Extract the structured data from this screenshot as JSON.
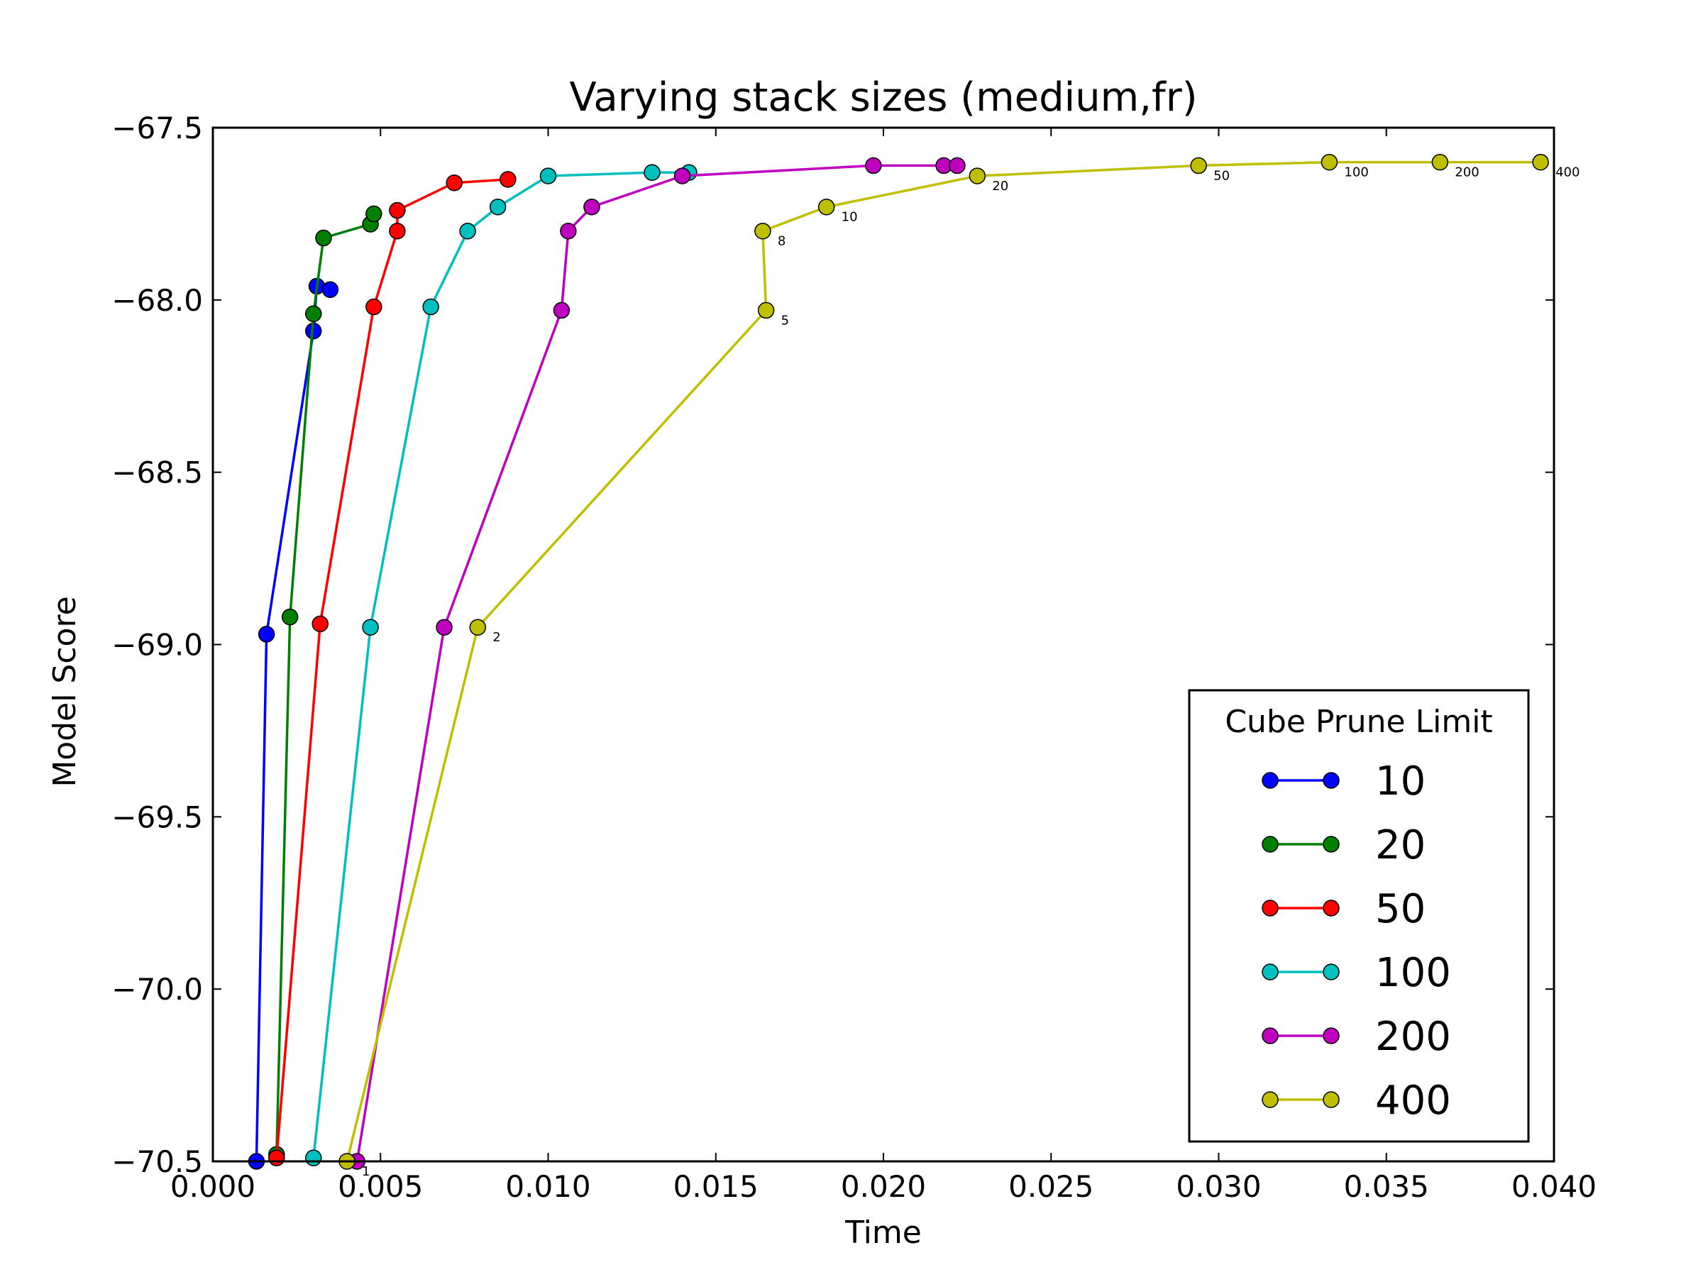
{
  "chart_data": {
    "type": "line",
    "title": "Varying stack sizes (medium,fr)",
    "xlabel": "Time",
    "ylabel": "Model Score",
    "xlim": [
      0.0,
      0.04
    ],
    "ylim": [
      -70.5,
      -67.5
    ],
    "xticks": [
      0.0,
      0.005,
      0.01,
      0.015,
      0.02,
      0.025,
      0.03,
      0.035,
      0.04
    ],
    "xtick_labels": [
      "0.000",
      "0.005",
      "0.010",
      "0.015",
      "0.020",
      "0.025",
      "0.030",
      "0.035",
      "0.040"
    ],
    "yticks": [
      -67.5,
      -68.0,
      -68.5,
      -69.0,
      -69.5,
      -70.0,
      -70.5
    ],
    "ytick_labels": [
      "−67.5",
      "−68.0",
      "−68.5",
      "−69.0",
      "−69.5",
      "−70.0",
      "−70.5"
    ],
    "grid": false,
    "legend": {
      "title": "Cube Prune Limit",
      "placement": "lower-right"
    },
    "series": [
      {
        "name": "10",
        "color": "#0000ff",
        "points": [
          {
            "x": 0.0013,
            "y": -70.5
          },
          {
            "x": 0.0016,
            "y": -68.97
          },
          {
            "x": 0.003,
            "y": -68.09
          },
          {
            "x": 0.0031,
            "y": -67.96
          },
          {
            "x": 0.0035,
            "y": -67.97
          }
        ]
      },
      {
        "name": "20",
        "color": "#007f00",
        "points": [
          {
            "x": 0.0019,
            "y": -70.48
          },
          {
            "x": 0.0023,
            "y": -68.92
          },
          {
            "x": 0.003,
            "y": -68.04
          },
          {
            "x": 0.0033,
            "y": -67.82
          },
          {
            "x": 0.0047,
            "y": -67.78
          },
          {
            "x": 0.0048,
            "y": -67.75
          }
        ]
      },
      {
        "name": "50",
        "color": "#ff0000",
        "points": [
          {
            "x": 0.0019,
            "y": -70.49
          },
          {
            "x": 0.0032,
            "y": -68.94
          },
          {
            "x": 0.0048,
            "y": -68.02
          },
          {
            "x": 0.0055,
            "y": -67.8
          },
          {
            "x": 0.0055,
            "y": -67.74
          },
          {
            "x": 0.0072,
            "y": -67.66
          },
          {
            "x": 0.0088,
            "y": -67.65
          }
        ]
      },
      {
        "name": "100",
        "color": "#00bfbf",
        "points": [
          {
            "x": 0.003,
            "y": -70.49
          },
          {
            "x": 0.0047,
            "y": -68.95
          },
          {
            "x": 0.0065,
            "y": -68.02
          },
          {
            "x": 0.0076,
            "y": -67.8
          },
          {
            "x": 0.0085,
            "y": -67.73
          },
          {
            "x": 0.01,
            "y": -67.64
          },
          {
            "x": 0.0131,
            "y": -67.63
          },
          {
            "x": 0.0142,
            "y": -67.63
          }
        ]
      },
      {
        "name": "200",
        "color": "#bf00bf",
        "points": [
          {
            "x": 0.0043,
            "y": -70.5
          },
          {
            "x": 0.0069,
            "y": -68.95
          },
          {
            "x": 0.0104,
            "y": -68.03
          },
          {
            "x": 0.0106,
            "y": -67.8
          },
          {
            "x": 0.0113,
            "y": -67.73
          },
          {
            "x": 0.014,
            "y": -67.64
          },
          {
            "x": 0.0197,
            "y": -67.61
          },
          {
            "x": 0.0218,
            "y": -67.61
          },
          {
            "x": 0.0222,
            "y": -67.61
          }
        ]
      },
      {
        "name": "400",
        "color": "#bfbf00",
        "points": [
          {
            "x": 0.004,
            "y": -70.5,
            "label": "1"
          },
          {
            "x": 0.0079,
            "y": -68.95,
            "label": "2"
          },
          {
            "x": 0.0165,
            "y": -68.03,
            "label": "5"
          },
          {
            "x": 0.0164,
            "y": -67.8,
            "label": "8"
          },
          {
            "x": 0.0183,
            "y": -67.73,
            "label": "10"
          },
          {
            "x": 0.0228,
            "y": -67.64,
            "label": "20"
          },
          {
            "x": 0.0294,
            "y": -67.61,
            "label": "50"
          },
          {
            "x": 0.0333,
            "y": -67.6,
            "label": "100"
          },
          {
            "x": 0.0366,
            "y": -67.6,
            "label": "200"
          },
          {
            "x": 0.0396,
            "y": -67.6,
            "label": "400"
          }
        ]
      }
    ]
  }
}
